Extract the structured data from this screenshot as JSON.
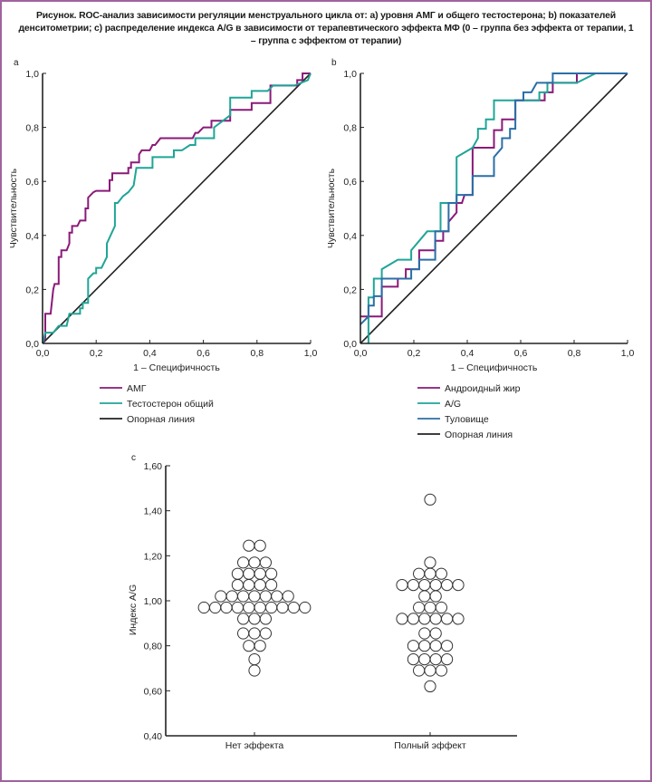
{
  "figure": {
    "caption": "Рисунок. ROC-анализ зависимости регуляции менструального цикла от: a) уровня АМГ и общего тестостерона; b) показателей денситометрии; c) распределение индекса A/G в зависимости от терапевтического эффекта МФ (0 – группа без эффекта от терапии, 1 – группа с эффектом от терапии)",
    "border_color": "#a0639e"
  },
  "chart_data": [
    {
      "id": "a",
      "panel_label": "a",
      "type": "line",
      "title": "",
      "xlabel": "1 – Специфичность",
      "ylabel": "Чувствительность",
      "xlim": [
        0,
        1
      ],
      "ylim": [
        0,
        1
      ],
      "xticks": [
        "0,0",
        "0,2",
        "0,4",
        "0,6",
        "0,8",
        "1,0"
      ],
      "yticks": [
        "0,0",
        "0,2",
        "0,4",
        "0,6",
        "0,8",
        "1,0"
      ],
      "grid": false,
      "legend_position": "bottom",
      "series": [
        {
          "name": "АМГ",
          "color": "#8a1a78",
          "points": [
            [
              0,
              0
            ],
            [
              0.01,
              0.02
            ],
            [
              0.01,
              0.11
            ],
            [
              0.03,
              0.11
            ],
            [
              0.04,
              0.2
            ],
            [
              0.045,
              0.22
            ],
            [
              0.06,
              0.22
            ],
            [
              0.06,
              0.32
            ],
            [
              0.07,
              0.32
            ],
            [
              0.07,
              0.345
            ],
            [
              0.09,
              0.345
            ],
            [
              0.1,
              0.37
            ],
            [
              0.1,
              0.41
            ],
            [
              0.11,
              0.41
            ],
            [
              0.11,
              0.435
            ],
            [
              0.13,
              0.435
            ],
            [
              0.14,
              0.455
            ],
            [
              0.16,
              0.455
            ],
            [
              0.16,
              0.5
            ],
            [
              0.17,
              0.5
            ],
            [
              0.17,
              0.54
            ],
            [
              0.19,
              0.56
            ],
            [
              0.2,
              0.565
            ],
            [
              0.25,
              0.565
            ],
            [
              0.25,
              0.605
            ],
            [
              0.26,
              0.605
            ],
            [
              0.26,
              0.63
            ],
            [
              0.32,
              0.63
            ],
            [
              0.32,
              0.65
            ],
            [
              0.33,
              0.65
            ],
            [
              0.33,
              0.67
            ],
            [
              0.36,
              0.67
            ],
            [
              0.36,
              0.7
            ],
            [
              0.37,
              0.715
            ],
            [
              0.4,
              0.715
            ],
            [
              0.41,
              0.735
            ],
            [
              0.42,
              0.735
            ],
            [
              0.44,
              0.76
            ],
            [
              0.56,
              0.76
            ],
            [
              0.57,
              0.78
            ],
            [
              0.58,
              0.78
            ],
            [
              0.6,
              0.8
            ],
            [
              0.63,
              0.8
            ],
            [
              0.63,
              0.825
            ],
            [
              0.7,
              0.825
            ],
            [
              0.7,
              0.865
            ],
            [
              0.78,
              0.865
            ],
            [
              0.78,
              0.89
            ],
            [
              0.85,
              0.89
            ],
            [
              0.85,
              0.955
            ],
            [
              0.95,
              0.955
            ],
            [
              0.95,
              0.975
            ],
            [
              0.97,
              0.975
            ],
            [
              0.97,
              1.0
            ],
            [
              1.0,
              1.0
            ]
          ]
        },
        {
          "name": "Тестостерон общий",
          "color": "#1fa597",
          "points": [
            [
              0,
              0
            ],
            [
              0.01,
              0.04
            ],
            [
              0.04,
              0.04
            ],
            [
              0.06,
              0.065
            ],
            [
              0.09,
              0.065
            ],
            [
              0.1,
              0.11
            ],
            [
              0.14,
              0.11
            ],
            [
              0.14,
              0.13
            ],
            [
              0.15,
              0.13
            ],
            [
              0.15,
              0.15
            ],
            [
              0.17,
              0.15
            ],
            [
              0.17,
              0.24
            ],
            [
              0.19,
              0.26
            ],
            [
              0.2,
              0.26
            ],
            [
              0.2,
              0.28
            ],
            [
              0.22,
              0.28
            ],
            [
              0.24,
              0.32
            ],
            [
              0.24,
              0.37
            ],
            [
              0.27,
              0.435
            ],
            [
              0.27,
              0.52
            ],
            [
              0.28,
              0.52
            ],
            [
              0.3,
              0.545
            ],
            [
              0.32,
              0.56
            ],
            [
              0.34,
              0.585
            ],
            [
              0.35,
              0.65
            ],
            [
              0.41,
              0.65
            ],
            [
              0.41,
              0.69
            ],
            [
              0.49,
              0.69
            ],
            [
              0.49,
              0.715
            ],
            [
              0.52,
              0.715
            ],
            [
              0.55,
              0.735
            ],
            [
              0.57,
              0.735
            ],
            [
              0.57,
              0.76
            ],
            [
              0.64,
              0.76
            ],
            [
              0.64,
              0.8
            ],
            [
              0.7,
              0.845
            ],
            [
              0.7,
              0.91
            ],
            [
              0.78,
              0.91
            ],
            [
              0.78,
              0.935
            ],
            [
              0.84,
              0.935
            ],
            [
              0.86,
              0.955
            ],
            [
              0.94,
              0.955
            ],
            [
              0.99,
              0.975
            ],
            [
              1.0,
              1.0
            ]
          ]
        },
        {
          "name": "Опорная линия",
          "color": "#222222",
          "points": [
            [
              0,
              0
            ],
            [
              1,
              1
            ]
          ]
        }
      ]
    },
    {
      "id": "b",
      "panel_label": "b",
      "type": "line",
      "title": "",
      "xlabel": "1 – Специфичность",
      "ylabel": "Чувствительность",
      "xlim": [
        0,
        1
      ],
      "ylim": [
        0,
        1
      ],
      "xticks": [
        "0,0",
        "0,2",
        "0,4",
        "0,6",
        "0,8",
        "1,0"
      ],
      "yticks": [
        "0,0",
        "0,2",
        "0,4",
        "0,6",
        "0,8",
        "1,0"
      ],
      "grid": false,
      "legend_position": "bottom",
      "series": [
        {
          "name": "Андроидный жир",
          "color": "#8a1a78",
          "points": [
            [
              0,
              0.1
            ],
            [
              0.08,
              0.1
            ],
            [
              0.08,
              0.21
            ],
            [
              0.14,
              0.21
            ],
            [
              0.14,
              0.24
            ],
            [
              0.17,
              0.24
            ],
            [
              0.17,
              0.275
            ],
            [
              0.22,
              0.275
            ],
            [
              0.22,
              0.345
            ],
            [
              0.28,
              0.345
            ],
            [
              0.28,
              0.38
            ],
            [
              0.31,
              0.38
            ],
            [
              0.31,
              0.415
            ],
            [
              0.33,
              0.415
            ],
            [
              0.33,
              0.45
            ],
            [
              0.36,
              0.485
            ],
            [
              0.36,
              0.52
            ],
            [
              0.38,
              0.52
            ],
            [
              0.39,
              0.55
            ],
            [
              0.42,
              0.55
            ],
            [
              0.42,
              0.725
            ],
            [
              0.5,
              0.725
            ],
            [
              0.5,
              0.79
            ],
            [
              0.53,
              0.79
            ],
            [
              0.53,
              0.83
            ],
            [
              0.58,
              0.83
            ],
            [
              0.58,
              0.9
            ],
            [
              0.69,
              0.9
            ],
            [
              0.69,
              0.93
            ],
            [
              0.72,
              0.93
            ],
            [
              0.72,
              0.965
            ],
            [
              0.81,
              0.965
            ],
            [
              0.81,
              1.0
            ],
            [
              1.0,
              1.0
            ]
          ]
        },
        {
          "name": "A/G",
          "color": "#1fa597",
          "points": [
            [
              0.03,
              0
            ],
            [
              0.03,
              0.17
            ],
            [
              0.05,
              0.17
            ],
            [
              0.05,
              0.24
            ],
            [
              0.08,
              0.24
            ],
            [
              0.08,
              0.275
            ],
            [
              0.14,
              0.31
            ],
            [
              0.19,
              0.31
            ],
            [
              0.19,
              0.345
            ],
            [
              0.25,
              0.415
            ],
            [
              0.3,
              0.415
            ],
            [
              0.3,
              0.52
            ],
            [
              0.36,
              0.52
            ],
            [
              0.36,
              0.69
            ],
            [
              0.42,
              0.725
            ],
            [
              0.44,
              0.76
            ],
            [
              0.44,
              0.795
            ],
            [
              0.47,
              0.795
            ],
            [
              0.47,
              0.83
            ],
            [
              0.5,
              0.83
            ],
            [
              0.5,
              0.9
            ],
            [
              0.67,
              0.9
            ],
            [
              0.67,
              0.93
            ],
            [
              0.7,
              0.93
            ],
            [
              0.7,
              0.965
            ],
            [
              0.81,
              0.965
            ],
            [
              0.88,
              1.0
            ],
            [
              1.0,
              1.0
            ]
          ]
        },
        {
          "name": "Туловище",
          "color": "#2b6ea6",
          "points": [
            [
              0,
              0.07
            ],
            [
              0.03,
              0.1
            ],
            [
              0.03,
              0.14
            ],
            [
              0.05,
              0.14
            ],
            [
              0.05,
              0.175
            ],
            [
              0.08,
              0.175
            ],
            [
              0.08,
              0.24
            ],
            [
              0.19,
              0.24
            ],
            [
              0.19,
              0.275
            ],
            [
              0.22,
              0.275
            ],
            [
              0.22,
              0.31
            ],
            [
              0.28,
              0.31
            ],
            [
              0.28,
              0.415
            ],
            [
              0.33,
              0.415
            ],
            [
              0.33,
              0.52
            ],
            [
              0.36,
              0.52
            ],
            [
              0.36,
              0.55
            ],
            [
              0.42,
              0.55
            ],
            [
              0.42,
              0.62
            ],
            [
              0.5,
              0.62
            ],
            [
              0.5,
              0.69
            ],
            [
              0.53,
              0.725
            ],
            [
              0.53,
              0.76
            ],
            [
              0.56,
              0.76
            ],
            [
              0.56,
              0.795
            ],
            [
              0.58,
              0.795
            ],
            [
              0.58,
              0.9
            ],
            [
              0.61,
              0.9
            ],
            [
              0.61,
              0.93
            ],
            [
              0.64,
              0.93
            ],
            [
              0.66,
              0.965
            ],
            [
              0.72,
              0.965
            ],
            [
              0.72,
              1.0
            ],
            [
              1.0,
              1.0
            ]
          ]
        },
        {
          "name": "Опорная линия",
          "color": "#222222",
          "points": [
            [
              0,
              0
            ],
            [
              1,
              1
            ]
          ]
        }
      ]
    },
    {
      "id": "c",
      "panel_label": "c",
      "type": "scatter",
      "subtype": "dot-plot",
      "title": "",
      "xlabel": "",
      "ylabel": "Индекс A/G",
      "categories": [
        "Нет эффекта",
        "Полный эффект"
      ],
      "ylim": [
        0.4,
        1.6
      ],
      "yticks": [
        "0,40",
        "0,60",
        "0,80",
        "1,00",
        "1,20",
        "1,40",
        "1,60"
      ],
      "grid": false,
      "series": [
        {
          "name": "Нет эффекта",
          "rows": [
            {
              "value": 1.245,
              "count": 2
            },
            {
              "value": 1.17,
              "count": 3
            },
            {
              "value": 1.12,
              "count": 4
            },
            {
              "value": 1.07,
              "count": 4
            },
            {
              "value": 1.02,
              "count": 7
            },
            {
              "value": 0.97,
              "count": 10
            },
            {
              "value": 0.92,
              "count": 3
            },
            {
              "value": 0.855,
              "count": 3
            },
            {
              "value": 0.8,
              "count": 2
            },
            {
              "value": 0.74,
              "count": 1
            },
            {
              "value": 0.69,
              "count": 1
            }
          ]
        },
        {
          "name": "Полный эффект",
          "rows": [
            {
              "value": 1.45,
              "count": 1
            },
            {
              "value": 1.17,
              "count": 1
            },
            {
              "value": 1.12,
              "count": 3
            },
            {
              "value": 1.07,
              "count": 6
            },
            {
              "value": 1.02,
              "count": 2
            },
            {
              "value": 0.97,
              "count": 3
            },
            {
              "value": 0.92,
              "count": 6
            },
            {
              "value": 0.855,
              "count": 2
            },
            {
              "value": 0.8,
              "count": 4
            },
            {
              "value": 0.74,
              "count": 4
            },
            {
              "value": 0.69,
              "count": 3
            },
            {
              "value": 0.62,
              "count": 1
            }
          ]
        }
      ]
    }
  ]
}
